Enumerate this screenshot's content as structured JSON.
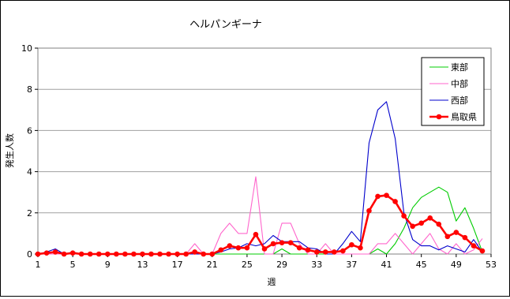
{
  "chart_data": {
    "type": "line",
    "title": "ヘルパンギーナ",
    "xlabel": "週",
    "ylabel": "発生人数",
    "ylim": [
      0,
      10
    ],
    "yticks": [
      "0",
      "2",
      "4",
      "6",
      "8",
      "10"
    ],
    "xlim": [
      1,
      53
    ],
    "xticks": [
      "1",
      "5",
      "9",
      "13",
      "17",
      "21",
      "25",
      "29",
      "33",
      "37",
      "41",
      "45",
      "49",
      "53"
    ],
    "grid": "horizontal",
    "legend_position": "top-right",
    "x": [
      1,
      2,
      3,
      4,
      5,
      6,
      7,
      8,
      9,
      10,
      11,
      12,
      13,
      14,
      15,
      16,
      17,
      18,
      19,
      20,
      21,
      22,
      23,
      24,
      25,
      26,
      27,
      28,
      29,
      30,
      31,
      32,
      33,
      34,
      35,
      36,
      37,
      38,
      39,
      40,
      41,
      42,
      43,
      44,
      45,
      46,
      47,
      48,
      49,
      50,
      51,
      52
    ],
    "series": [
      {
        "name": "東部",
        "color": "#00cc00",
        "values": [
          0,
          0,
          0,
          0,
          0,
          0,
          0,
          0,
          0,
          0,
          0,
          0,
          0,
          0,
          0,
          0,
          0,
          0,
          0,
          0,
          0,
          0,
          0,
          0,
          0,
          0,
          0,
          0,
          0.25,
          0,
          0,
          0,
          0,
          0,
          0,
          0,
          0,
          0,
          0,
          0.25,
          0,
          0.5,
          1.25,
          2.25,
          2.75,
          3.0,
          3.25,
          3.0,
          1.6,
          2.25,
          1.25,
          0.1
        ]
      },
      {
        "name": "中部",
        "color": "#ff66cc",
        "values": [
          0,
          0,
          0,
          0,
          0,
          0,
          0,
          0,
          0,
          0,
          0,
          0,
          0,
          0,
          0,
          0,
          0,
          0,
          0.5,
          0,
          0,
          1.0,
          1.5,
          1.0,
          1.0,
          3.75,
          0,
          0,
          1.5,
          1.5,
          0.5,
          0,
          0,
          0.5,
          0,
          0,
          0,
          0,
          0,
          0.5,
          0.5,
          1.0,
          0.5,
          0,
          0.5,
          1.0,
          0.25,
          0,
          0.5,
          0,
          0.2,
          0.75
        ]
      },
      {
        "name": "西部",
        "color": "#0000cc",
        "values": [
          0,
          0.1,
          0.25,
          0,
          0.1,
          0,
          0,
          0,
          0,
          0,
          0,
          0,
          0,
          0,
          0,
          0,
          0,
          0,
          0,
          0,
          0,
          0.1,
          0.25,
          0.3,
          0.5,
          0.4,
          0.5,
          0.9,
          0.6,
          0.6,
          0.6,
          0.3,
          0.25,
          0,
          0,
          0.5,
          1.1,
          0.6,
          5.4,
          7.0,
          7.4,
          5.6,
          2.0,
          0.7,
          0.4,
          0.4,
          0.2,
          0.4,
          0.25,
          0.1,
          0.7,
          0.1
        ]
      },
      {
        "name": "鳥取県",
        "color": "#ff0000",
        "values": [
          0,
          0.05,
          0.1,
          0,
          0.05,
          0,
          0,
          0,
          0,
          0,
          0,
          0,
          0,
          0,
          0,
          0,
          0,
          0,
          0.1,
          0,
          0,
          0.2,
          0.4,
          0.3,
          0.3,
          0.95,
          0.25,
          0.5,
          0.55,
          0.55,
          0.3,
          0.2,
          0.1,
          0.1,
          0.1,
          0.15,
          0.45,
          0.3,
          2.1,
          2.8,
          2.85,
          2.55,
          1.85,
          1.35,
          1.5,
          1.75,
          1.45,
          0.85,
          1.05,
          0.8,
          0.4,
          0.15
        ]
      }
    ]
  }
}
